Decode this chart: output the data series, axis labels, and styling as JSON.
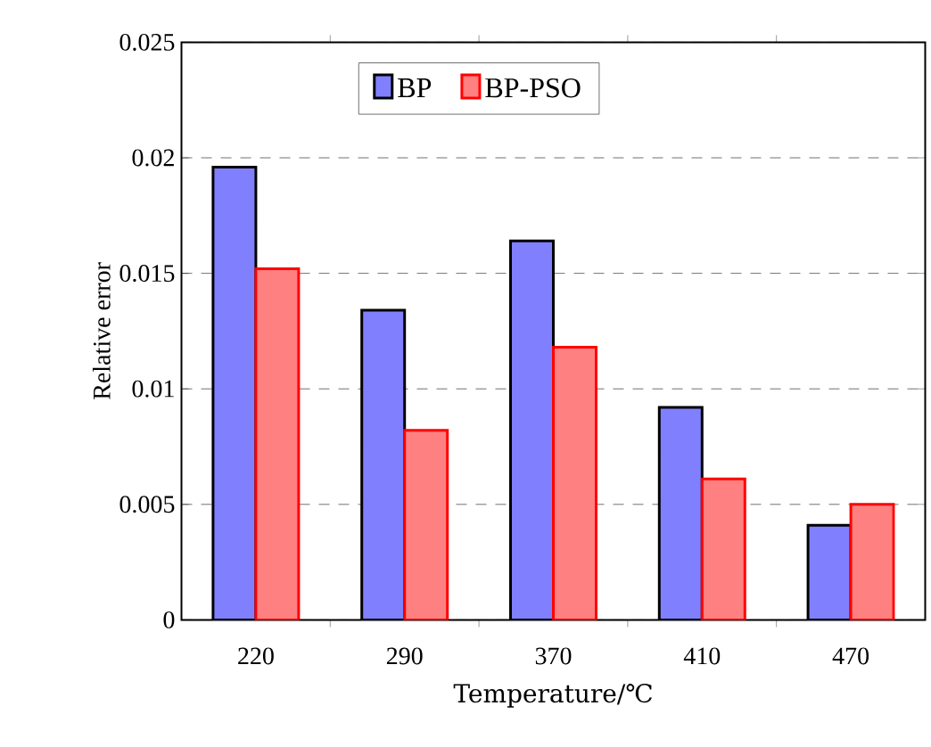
{
  "chart_data": {
    "type": "bar",
    "xlabel": "Temperature/℃",
    "ylabel": "Relative error",
    "categories": [
      "220",
      "290",
      "370",
      "410",
      "470"
    ],
    "series": [
      {
        "name": "BP",
        "color": "#8080ff",
        "values": [
          0.0196,
          0.0134,
          0.0164,
          0.0092,
          0.0041
        ]
      },
      {
        "name": "BP-PSO",
        "color": "#ff8080",
        "values": [
          0.0152,
          0.0082,
          0.0118,
          0.0061,
          0.005
        ]
      }
    ],
    "ylim": [
      0,
      0.025
    ],
    "yticks": [
      0,
      0.005,
      0.01,
      0.015,
      0.02,
      0.025
    ],
    "grid": "y",
    "legend": "top"
  }
}
